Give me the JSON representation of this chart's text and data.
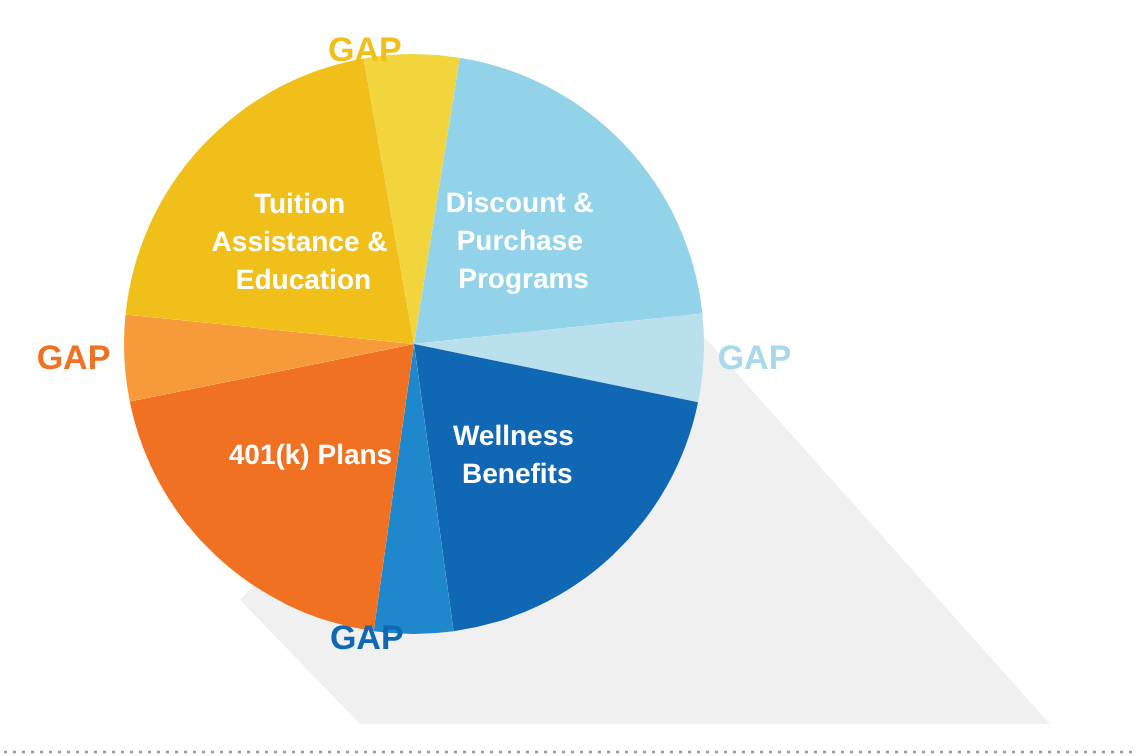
{
  "chart_data": {
    "type": "pie",
    "categories": [
      "GAP",
      "Discount & Purchase Programs",
      "GAP",
      "Wellness Benefits",
      "GAP",
      "401(k) Plans",
      "GAP",
      "Tuition Assistance & Education"
    ],
    "values": [
      5.3,
      20.8,
      4.9,
      19.6,
      4.4,
      19.6,
      4.8,
      20.6
    ],
    "colors": [
      "#f2d53c",
      "#93d3ea",
      "#b9e0ec",
      "#1068b4",
      "#1f87cc",
      "#f07122",
      "#f79a3a",
      "#f0bf1a"
    ],
    "legend": false
  }
}
